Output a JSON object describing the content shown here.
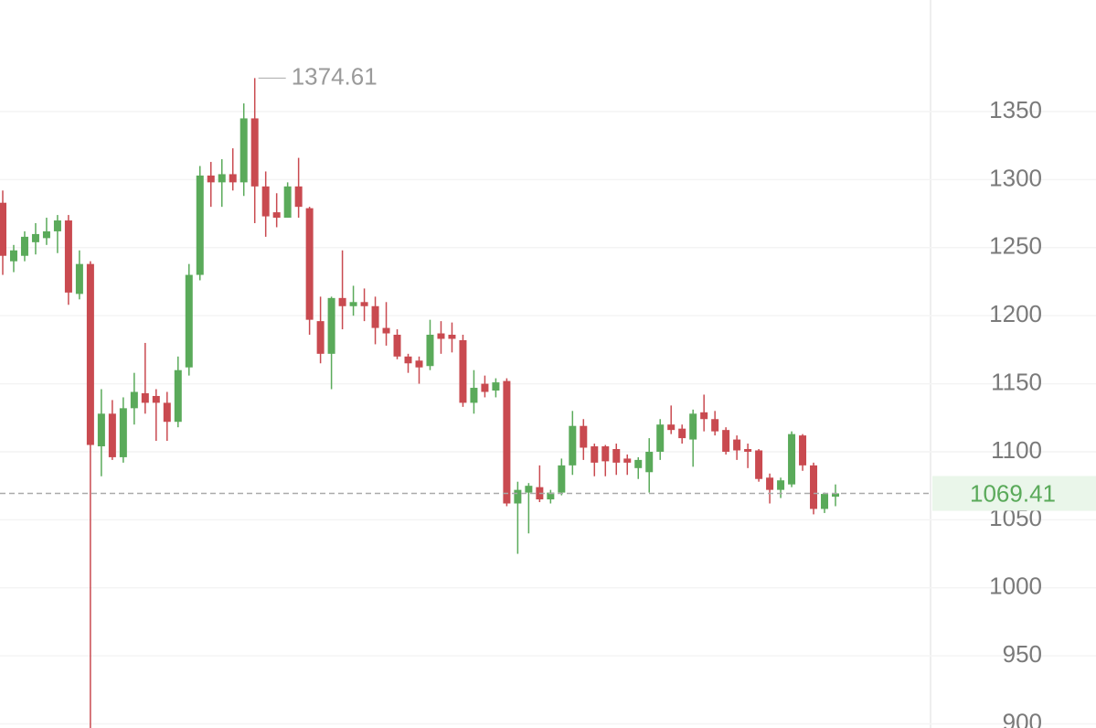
{
  "chart_data": {
    "type": "candlestick",
    "open": [
      1283,
      1240,
      1244,
      1254,
      1257,
      1262,
      1270,
      1216,
      1238,
      1104,
      1128,
      1096,
      1132,
      1143,
      1141,
      1136,
      1122,
      1162,
      1230,
      1303,
      1298,
      1304,
      1298,
      1345,
      1295,
      1276,
      1272,
      1295,
      1279,
      1196,
      1172,
      1213,
      1207,
      1210,
      1207,
      1191,
      1186,
      1170,
      1167,
      1163,
      1187,
      1186,
      1182,
      1136,
      1150,
      1145,
      1152,
      1062,
      1070,
      1074,
      1065,
      1070,
      1090,
      1119,
      1104,
      1104,
      1102,
      1095,
      1088,
      1085,
      1100,
      1120,
      1117,
      1109,
      1129,
      1124,
      1116,
      1109,
      1102,
      1101,
      1081,
      1072,
      1076,
      1112,
      1090,
      1058,
      1067
    ],
    "high": [
      1292,
      1252,
      1262,
      1268,
      1272,
      1274,
      1274,
      1248,
      1240,
      1146,
      1138,
      1140,
      1158,
      1180,
      1146,
      1144,
      1170,
      1238,
      1310,
      1313,
      1315,
      1323,
      1356,
      1374.61,
      1306,
      1290,
      1298,
      1316,
      1280,
      1214,
      1214,
      1248,
      1222,
      1220,
      1214,
      1210,
      1190,
      1172,
      1170,
      1197,
      1196,
      1195,
      1186,
      1160,
      1156,
      1154,
      1154,
      1078,
      1077,
      1090,
      1072,
      1095,
      1130,
      1124,
      1106,
      1105,
      1106,
      1098,
      1096,
      1110,
      1124,
      1134,
      1120,
      1131,
      1142,
      1130,
      1118,
      1112,
      1106,
      1102,
      1084,
      1081,
      1115,
      1113,
      1092,
      1070,
      1076
    ],
    "low": [
      1230,
      1232,
      1240,
      1245,
      1252,
      1246,
      1208,
      1212,
      880,
      1082,
      1094,
      1092,
      1120,
      1128,
      1108,
      1108,
      1118,
      1156,
      1226,
      1280,
      1280,
      1292,
      1288,
      1268,
      1258,
      1265,
      1272,
      1272,
      1186,
      1165,
      1146,
      1190,
      1200,
      1196,
      1179,
      1178,
      1168,
      1158,
      1150,
      1160,
      1172,
      1173,
      1133,
      1128,
      1140,
      1140,
      1060,
      1025,
      1040,
      1063,
      1062,
      1068,
      1083,
      1094,
      1082,
      1082,
      1083,
      1083,
      1080,
      1070,
      1094,
      1113,
      1106,
      1089,
      1115,
      1112,
      1098,
      1094,
      1088,
      1078,
      1062,
      1066,
      1074,
      1086,
      1054,
      1055,
      1060
    ],
    "close": [
      1244,
      1248,
      1258,
      1260,
      1262,
      1270,
      1217,
      1238,
      1105,
      1128,
      1096,
      1132,
      1144,
      1136,
      1136,
      1122,
      1160,
      1230,
      1303,
      1298,
      1304,
      1298,
      1345,
      1295,
      1273,
      1272,
      1295,
      1280,
      1197,
      1172,
      1213,
      1207,
      1210,
      1207,
      1191,
      1187,
      1170,
      1165,
      1162,
      1186,
      1183,
      1183,
      1136,
      1147,
      1144,
      1151,
      1062,
      1072,
      1075,
      1065,
      1070,
      1090,
      1119,
      1103,
      1092,
      1093,
      1092,
      1092,
      1094,
      1100,
      1120,
      1116,
      1110,
      1128,
      1124,
      1115,
      1100,
      1101,
      1100,
      1080,
      1072,
      1079,
      1113,
      1090,
      1058,
      1069,
      1069.41
    ],
    "up_color": "#5aaa5a",
    "down_color": "#c94a50",
    "ylim": [
      897,
      1432
    ],
    "yticks": [
      900,
      950,
      1000,
      1050,
      1100,
      1150,
      1200,
      1250,
      1300,
      1350
    ],
    "grid": true
  }
}
